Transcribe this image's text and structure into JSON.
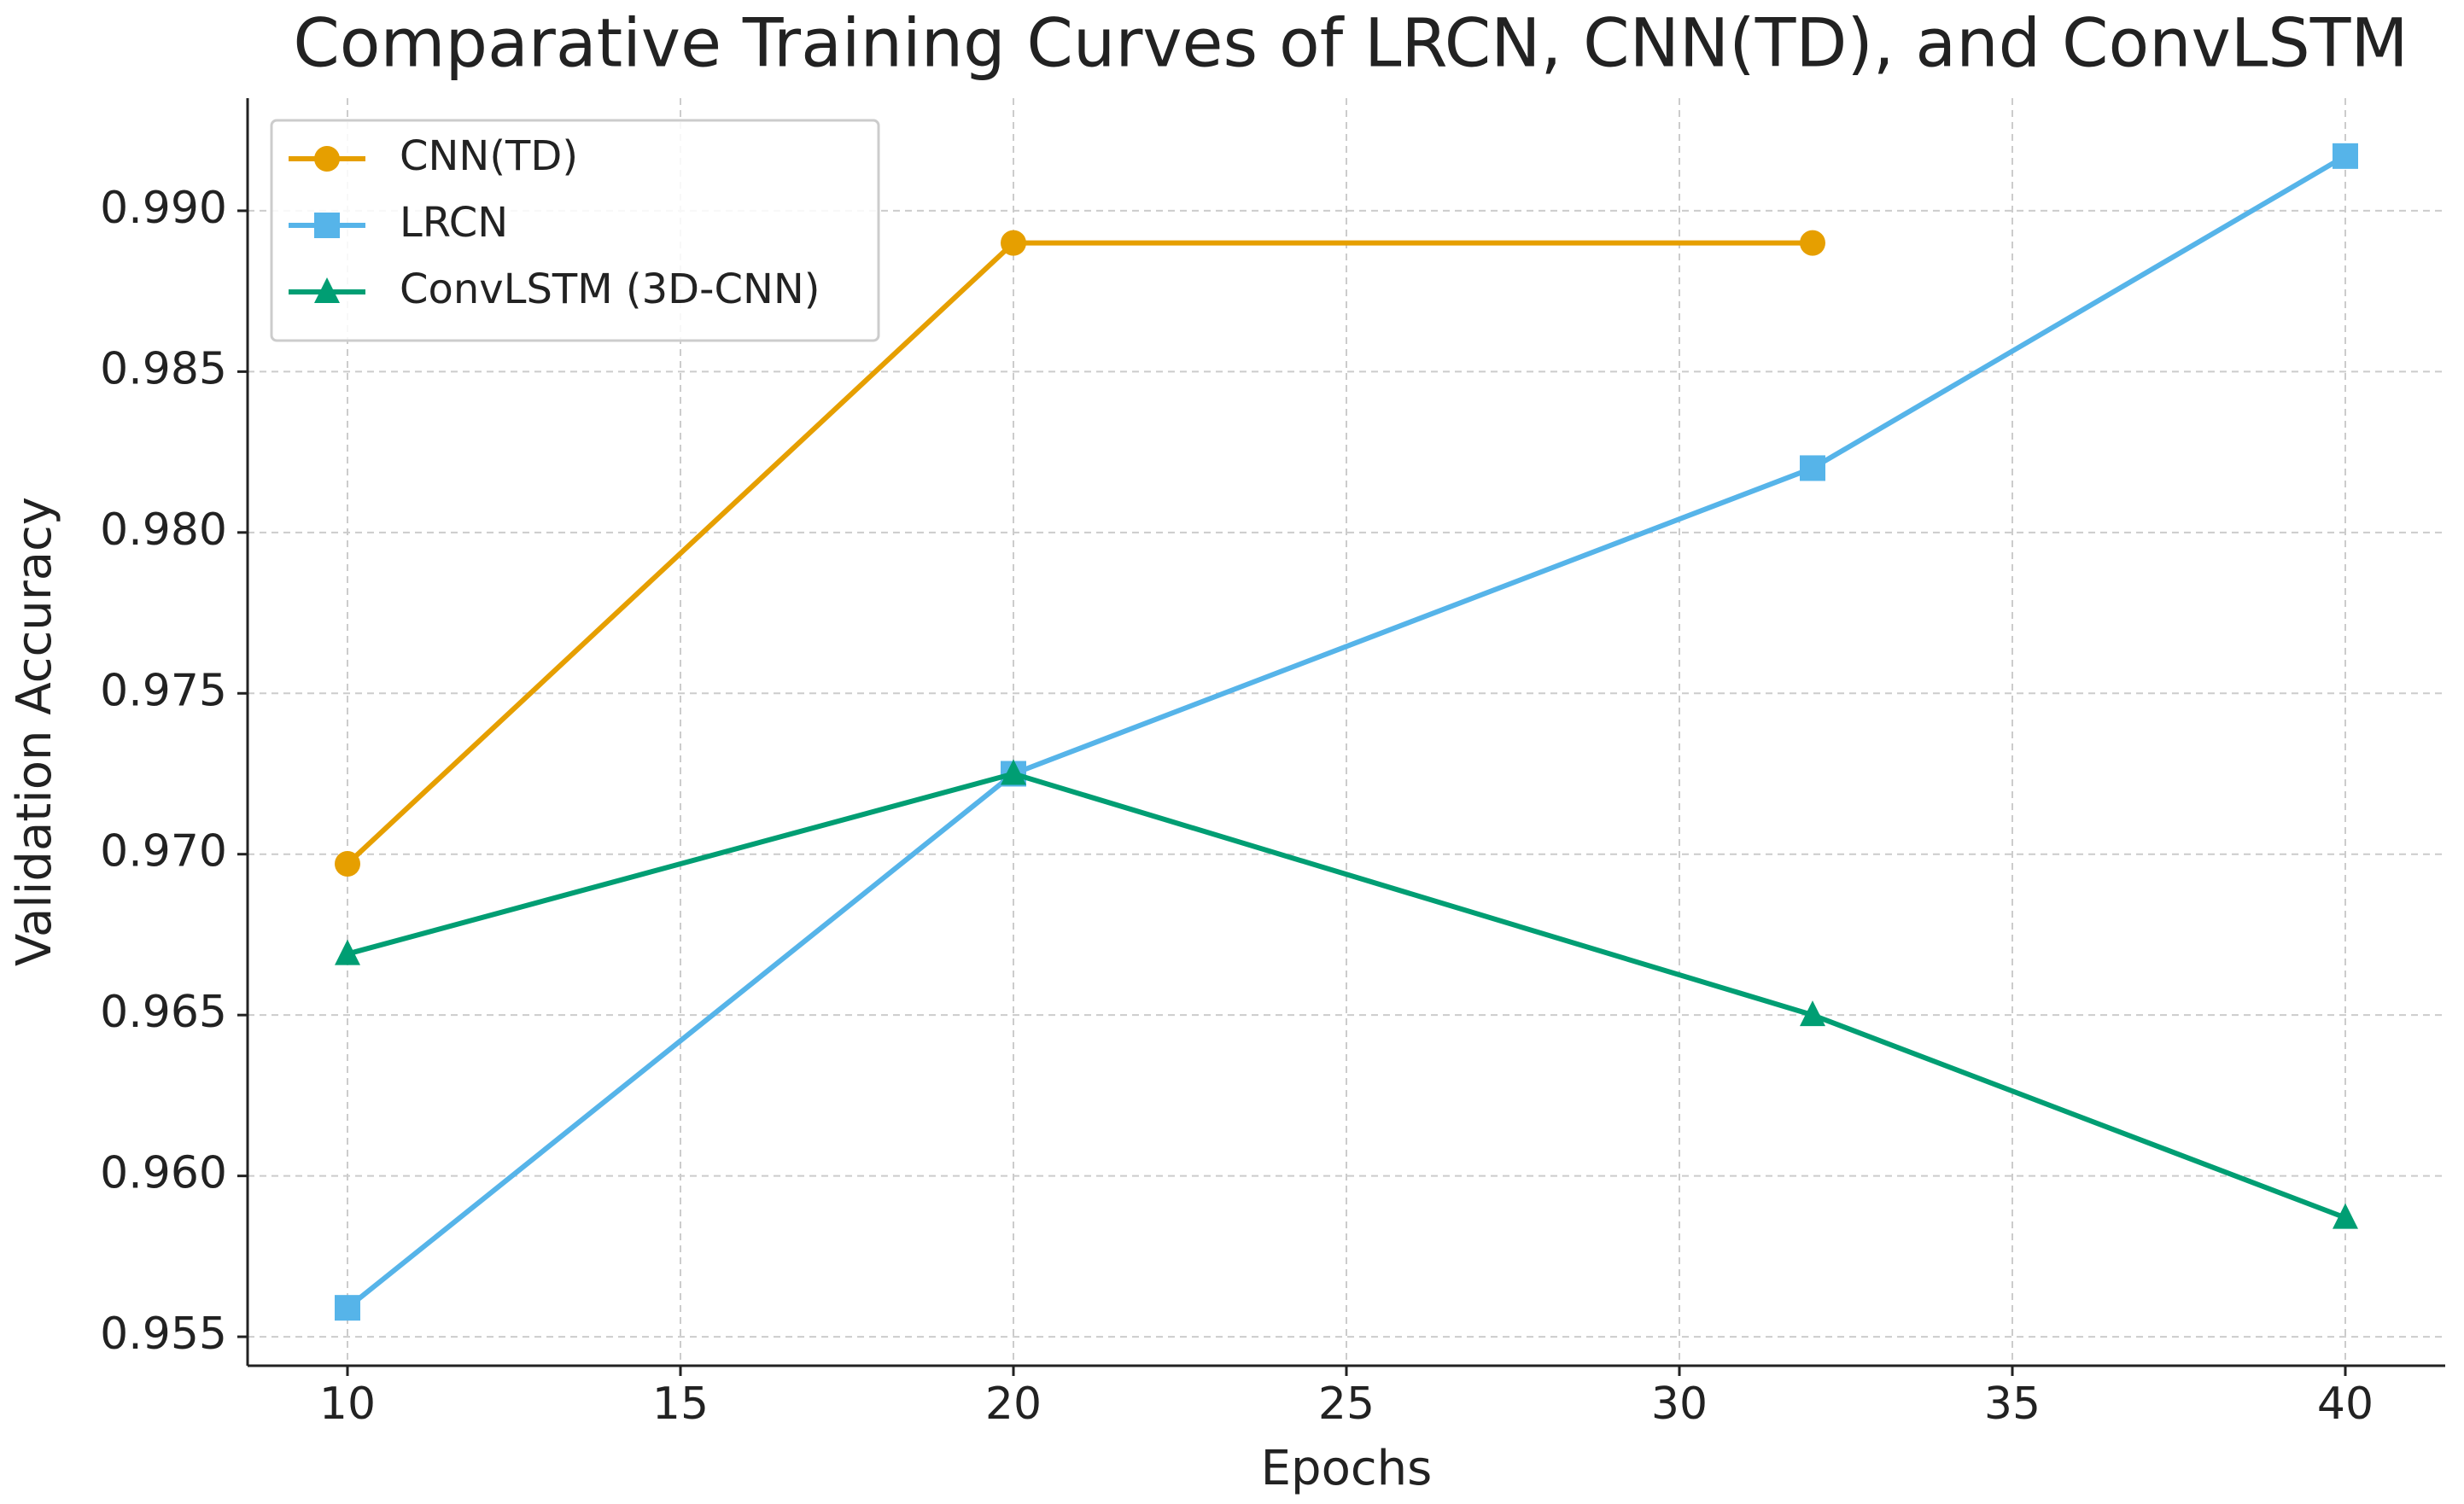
{
  "chart_data": {
    "type": "line",
    "title": "Comparative Training Curves of LRCN, CNN(TD), and ConvLSTM",
    "x_label": "Epochs",
    "y_label": "Validation Accuracy",
    "x": [
      10,
      20,
      32,
      40
    ],
    "series": [
      {
        "name": "CNN(TD)",
        "color": "#e69f00",
        "marker": "circle",
        "values": [
          0.9697,
          0.989,
          0.989,
          null
        ]
      },
      {
        "name": "LRCN",
        "color": "#56b4e9",
        "marker": "square",
        "values": [
          0.9559,
          0.9725,
          0.982,
          0.9917
        ]
      },
      {
        "name": "ConvLSTM (3D-CNN)",
        "color": "#009e73",
        "marker": "triangle",
        "values": [
          0.9669,
          0.9725,
          0.965,
          0.9587
        ]
      }
    ],
    "xlim": [
      8.5,
      41.5
    ],
    "xticks": [
      10,
      15,
      20,
      25,
      30,
      35,
      40
    ],
    "ylim": [
      0.9541,
      0.9935
    ],
    "yticks": [
      0.955,
      {
        "value": 0.96,
        "label": "0.960"
      },
      0.965,
      {
        "value": 0.97,
        "label": "0.970"
      },
      0.975,
      {
        "value": 0.98,
        "label": "0.980"
      },
      0.985,
      {
        "value": 0.99,
        "label": "0.990"
      }
    ],
    "grid": true,
    "legend": "upper left"
  }
}
